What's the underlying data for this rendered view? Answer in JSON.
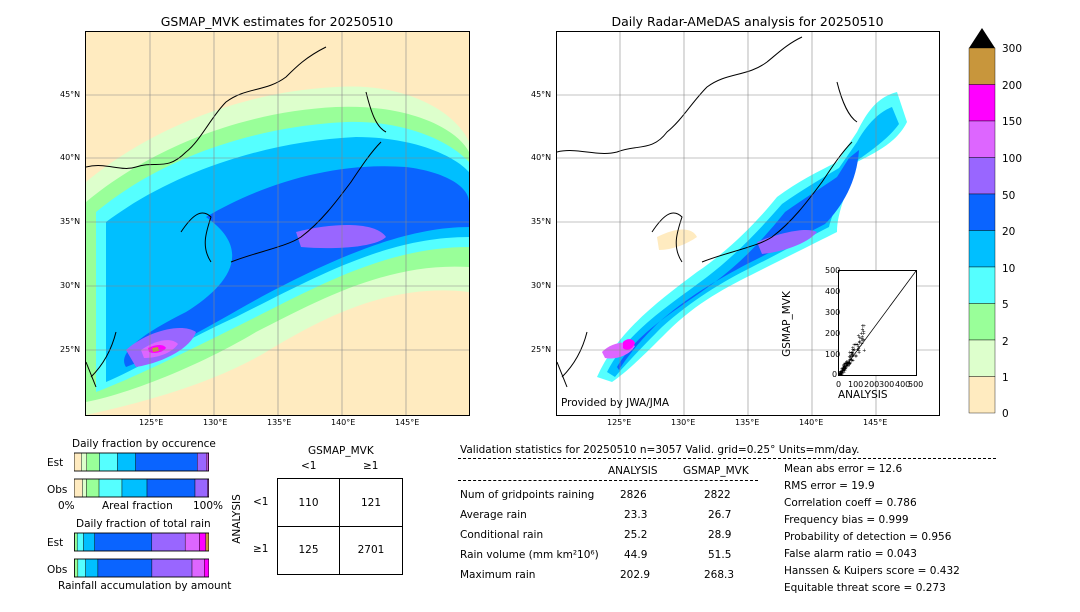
{
  "left_map": {
    "title": "GSMAP_MVK estimates for 20250510",
    "lat_labels": [
      "45°N",
      "40°N",
      "35°N",
      "30°N",
      "25°N"
    ],
    "lon_labels": [
      "125°E",
      "130°E",
      "135°E",
      "140°E",
      "145°E"
    ]
  },
  "right_map": {
    "title": "Daily Radar-AMeDAS analysis for 20250510",
    "lat_labels": [
      "45°N",
      "40°N",
      "35°N",
      "30°N",
      "25°N"
    ],
    "lon_labels": [
      "125°E",
      "130°E",
      "135°E",
      "140°E",
      "145°E"
    ],
    "credit": "Provided by JWA/JMA"
  },
  "colorbar": {
    "ticks": [
      "300",
      "200",
      "150",
      "100",
      "50",
      "20",
      "10",
      "5",
      "2",
      "1",
      "0"
    ],
    "colors": [
      "#c8963c",
      "#ff00ff",
      "#dd66ff",
      "#9966ff",
      "#0a64ff",
      "#00bfff",
      "#55ffff",
      "#99ff99",
      "#ddffcc",
      "#ffebc0"
    ],
    "cap_color": "#000000"
  },
  "scatter_inset": {
    "xlabel": "ANALYSIS",
    "ylabel": "GSMAP_MVK",
    "ticks": [
      "0",
      "100",
      "200",
      "300",
      "400",
      "500"
    ]
  },
  "fraction_occurrence": {
    "title": "Daily fraction by occurence",
    "rows": [
      "Est",
      "Obs"
    ],
    "xlabel_left": "0%",
    "xlabel_mid": "Areal fraction",
    "xlabel_right": "100%"
  },
  "fraction_total": {
    "title": "Daily fraction of total rain",
    "rows": [
      "Est",
      "Obs"
    ],
    "xlabel": "Rainfall accumulation by amount"
  },
  "contingency": {
    "title": "GSMAP_MVK",
    "col_labels": [
      "<1",
      "≥1"
    ],
    "row_labels": [
      "<1",
      "≥1"
    ],
    "side_label": "ANALYSIS",
    "cells": [
      [
        "110",
        "121"
      ],
      [
        "125",
        "2701"
      ]
    ]
  },
  "validation": {
    "header": "Validation statistics for 20250510  n=3057 Valid. grid=0.25° Units=mm/day.",
    "col_analysis": "ANALYSIS",
    "col_gsmap": "GSMAP_MVK",
    "rows": [
      {
        "label": "Num of gridpoints raining",
        "analysis": "2826",
        "gsmap": "2822"
      },
      {
        "label": "Average rain",
        "analysis": "23.3",
        "gsmap": "26.7"
      },
      {
        "label": "Conditional rain",
        "analysis": "25.2",
        "gsmap": "28.9"
      },
      {
        "label": "Rain volume (mm km²10⁶)",
        "analysis": "44.9",
        "gsmap": "51.5"
      },
      {
        "label": "Maximum rain",
        "analysis": "202.9",
        "gsmap": "268.3"
      }
    ],
    "scores": [
      "Mean abs error =   12.6",
      "RMS error =   19.9",
      "Correlation coeff =  0.786",
      "Frequency bias =  0.999",
      "Probability of detection =  0.956",
      "False alarm ratio =  0.043",
      "Hanssen & Kuipers score =  0.432",
      "Equitable threat score =  0.273"
    ]
  },
  "chart_data": [
    {
      "type": "heatmap",
      "title": "GSMAP_MVK estimates for 20250510",
      "x_range": [
        120,
        149
      ],
      "y_range": [
        20,
        50
      ],
      "x_ticks": [
        125,
        130,
        135,
        140,
        145
      ],
      "y_ticks": [
        25,
        30,
        35,
        40,
        45
      ],
      "levels": [
        0,
        1,
        2,
        5,
        10,
        20,
        50,
        100,
        150,
        200,
        300
      ],
      "grid": true
    },
    {
      "type": "heatmap",
      "title": "Daily Radar-AMeDAS analysis for 20250510",
      "x_range": [
        120,
        149
      ],
      "y_range": [
        20,
        50
      ],
      "x_ticks": [
        125,
        130,
        135,
        140,
        145
      ],
      "y_ticks": [
        25,
        30,
        35,
        40,
        45
      ],
      "levels": [
        0,
        1,
        2,
        5,
        10,
        20,
        50,
        100,
        150,
        200,
        300
      ],
      "grid": true
    },
    {
      "type": "scatter",
      "xlabel": "ANALYSIS",
      "ylabel": "GSMAP_MVK",
      "xlim": [
        0,
        500
      ],
      "ylim": [
        0,
        500
      ],
      "x_ticks": [
        0,
        100,
        200,
        300,
        400,
        500
      ],
      "y_ticks": [
        0,
        100,
        200,
        300,
        400,
        500
      ]
    },
    {
      "type": "table",
      "title": "GSMAP_MVK",
      "columns": [
        "<1",
        "≥1"
      ],
      "rows": [
        "<1",
        "≥1"
      ],
      "values": [
        [
          110,
          121
        ],
        [
          125,
          2701
        ]
      ]
    },
    {
      "type": "bar",
      "title": "Daily fraction by occurence",
      "stacked": true,
      "categories": [
        "Est",
        "Obs"
      ],
      "segment_colors": [
        "#ffebc0",
        "#ddffcc",
        "#99ff99",
        "#55ffff",
        "#00bfff",
        "#0a64ff",
        "#9966ff",
        "#dd66ff",
        "#ff00ff",
        "#c8963c"
      ],
      "values": [
        [
          0.04,
          0.03,
          0.07,
          0.1,
          0.1,
          0.34,
          0.05,
          0.01,
          0.005,
          0.0
        ],
        [
          0.04,
          0.02,
          0.06,
          0.11,
          0.12,
          0.23,
          0.06,
          0.005,
          0.002,
          0.0
        ]
      ]
    },
    {
      "type": "bar",
      "title": "Daily fraction of total rain",
      "stacked": true,
      "categories": [
        "Est",
        "Obs"
      ],
      "segment_colors": [
        "#ffebc0",
        "#ddffcc",
        "#99ff99",
        "#55ffff",
        "#00bfff",
        "#0a64ff",
        "#9966ff",
        "#dd66ff",
        "#ff00ff",
        "#c8963c"
      ],
      "values": [
        [
          0.0,
          0.005,
          0.015,
          0.04,
          0.07,
          0.36,
          0.21,
          0.09,
          0.04,
          0.02
        ],
        [
          0.0,
          0.005,
          0.02,
          0.05,
          0.08,
          0.35,
          0.26,
          0.08,
          0.03,
          0.0
        ]
      ]
    }
  ]
}
